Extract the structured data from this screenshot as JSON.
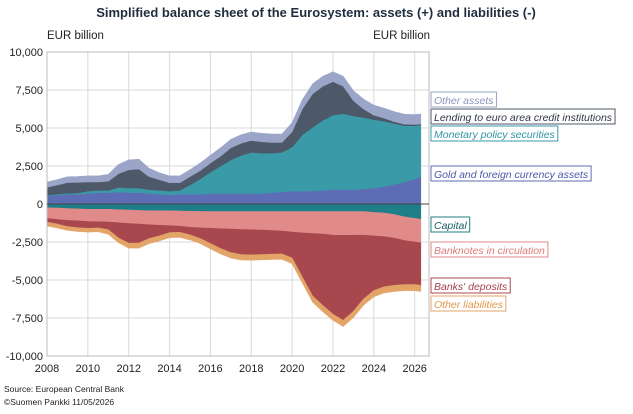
{
  "chart_data": {
    "type": "area",
    "title": "Simplified balance sheet of the Eurosystem: assets (+) and liabilities (-)",
    "ylabel_left": "EUR billion",
    "ylabel_right": "EUR billion",
    "ylim": [
      -10000,
      10000
    ],
    "yticks": [
      "10,000",
      "7,500",
      "5,000",
      "2,500",
      "0",
      "-2,500",
      "-5,000",
      "-7,500",
      "-10,000"
    ],
    "xlim": [
      2008,
      2026.7
    ],
    "xticks": [
      "2008",
      "2010",
      "2012",
      "2014",
      "2016",
      "2018",
      "2020",
      "2022",
      "2024",
      "2026"
    ],
    "grid": true,
    "legend_position": "right",
    "x": [
      2008,
      2008.5,
      2009,
      2009.5,
      2010,
      2010.5,
      2011,
      2011.5,
      2012,
      2012.5,
      2013,
      2013.5,
      2014,
      2014.5,
      2015,
      2015.5,
      2016,
      2016.5,
      2017,
      2017.5,
      2018,
      2018.5,
      2019,
      2019.5,
      2020,
      2020.5,
      2021,
      2021.5,
      2022,
      2022.5,
      2023,
      2023.5,
      2024,
      2024.5,
      2025,
      2025.5,
      2026,
      2026.3
    ],
    "assets": [
      {
        "name": "Gold and foreign currency assets",
        "color": "#5d6db5",
        "values": [
          550,
          600,
          650,
          650,
          700,
          750,
          750,
          800,
          750,
          750,
          700,
          650,
          600,
          650,
          650,
          650,
          700,
          700,
          700,
          700,
          700,
          700,
          750,
          800,
          850,
          850,
          850,
          900,
          950,
          950,
          950,
          1000,
          1050,
          1150,
          1300,
          1450,
          1650,
          1800
        ]
      },
      {
        "name": "Monetary policy securities",
        "color": "#3a9aa8",
        "values": [
          50,
          50,
          60,
          80,
          150,
          150,
          150,
          300,
          300,
          300,
          250,
          250,
          250,
          250,
          600,
          1000,
          1400,
          1800,
          2200,
          2500,
          2700,
          2650,
          2600,
          2600,
          2900,
          3700,
          4200,
          4600,
          4900,
          5000,
          4850,
          4700,
          4500,
          4300,
          4000,
          3700,
          3500,
          3400
        ]
      },
      {
        "name": "Lending to euro area credit institutions",
        "color": "#4d5868",
        "values": [
          500,
          600,
          700,
          700,
          600,
          550,
          600,
          900,
          1200,
          1250,
          850,
          700,
          550,
          500,
          550,
          550,
          600,
          650,
          800,
          800,
          780,
          750,
          700,
          650,
          1000,
          1700,
          2200,
          2250,
          2200,
          1800,
          1000,
          550,
          300,
          200,
          120,
          100,
          80,
          70
        ]
      },
      {
        "name": "Other assets",
        "color": "#9aa5c8",
        "values": [
          350,
          350,
          380,
          380,
          400,
          400,
          450,
          600,
          650,
          650,
          550,
          450,
          450,
          450,
          450,
          500,
          500,
          550,
          550,
          550,
          550,
          550,
          550,
          550,
          600,
          600,
          650,
          650,
          650,
          650,
          650,
          650,
          650,
          650,
          650,
          650,
          650,
          650
        ]
      }
    ],
    "liabilities": [
      {
        "name": "Capital",
        "color": "#1f7f88",
        "values": [
          -250,
          -270,
          -300,
          -320,
          -350,
          -350,
          -350,
          -380,
          -400,
          -420,
          -450,
          -450,
          -450,
          -460,
          -480,
          -490,
          -500,
          -500,
          -500,
          -500,
          -500,
          -500,
          -500,
          -500,
          -500,
          -500,
          -500,
          -500,
          -500,
          -500,
          -500,
          -500,
          -550,
          -600,
          -700,
          -850,
          -950,
          -1000
        ]
      },
      {
        "name": "Banknotes in circulation",
        "color": "#e08a8a",
        "values": [
          -700,
          -750,
          -780,
          -790,
          -800,
          -820,
          -840,
          -860,
          -880,
          -900,
          -920,
          -950,
          -980,
          -1000,
          -1050,
          -1080,
          -1100,
          -1130,
          -1150,
          -1180,
          -1200,
          -1220,
          -1250,
          -1280,
          -1350,
          -1400,
          -1450,
          -1480,
          -1550,
          -1560,
          -1560,
          -1550,
          -1550,
          -1550,
          -1550,
          -1550,
          -1550,
          -1550
        ]
      },
      {
        "name": "Banks' deposits",
        "color": "#a8484e",
        "values": [
          -250,
          -300,
          -400,
          -450,
          -450,
          -400,
          -500,
          -1000,
          -1300,
          -1250,
          -900,
          -700,
          -450,
          -400,
          -500,
          -700,
          -1000,
          -1300,
          -1550,
          -1650,
          -1650,
          -1600,
          -1550,
          -1500,
          -1700,
          -2900,
          -4100,
          -4700,
          -5200,
          -5600,
          -5000,
          -4200,
          -3600,
          -3300,
          -3100,
          -2900,
          -2800,
          -2800
        ]
      },
      {
        "name": "Other liabilities",
        "color": "#e3a468",
        "values": [
          -250,
          -250,
          -250,
          -250,
          -250,
          -250,
          -300,
          -300,
          -320,
          -330,
          -330,
          -330,
          -330,
          -330,
          -330,
          -330,
          -350,
          -350,
          -350,
          -350,
          -350,
          -350,
          -350,
          -350,
          -370,
          -380,
          -400,
          -400,
          -400,
          -400,
          -400,
          -400,
          -400,
          -400,
          -400,
          -400,
          -400,
          -400
        ]
      }
    ]
  },
  "footer": {
    "source": "Source: European Central Bank",
    "copyright": "©Suomen Pankki 11/05/2026"
  }
}
